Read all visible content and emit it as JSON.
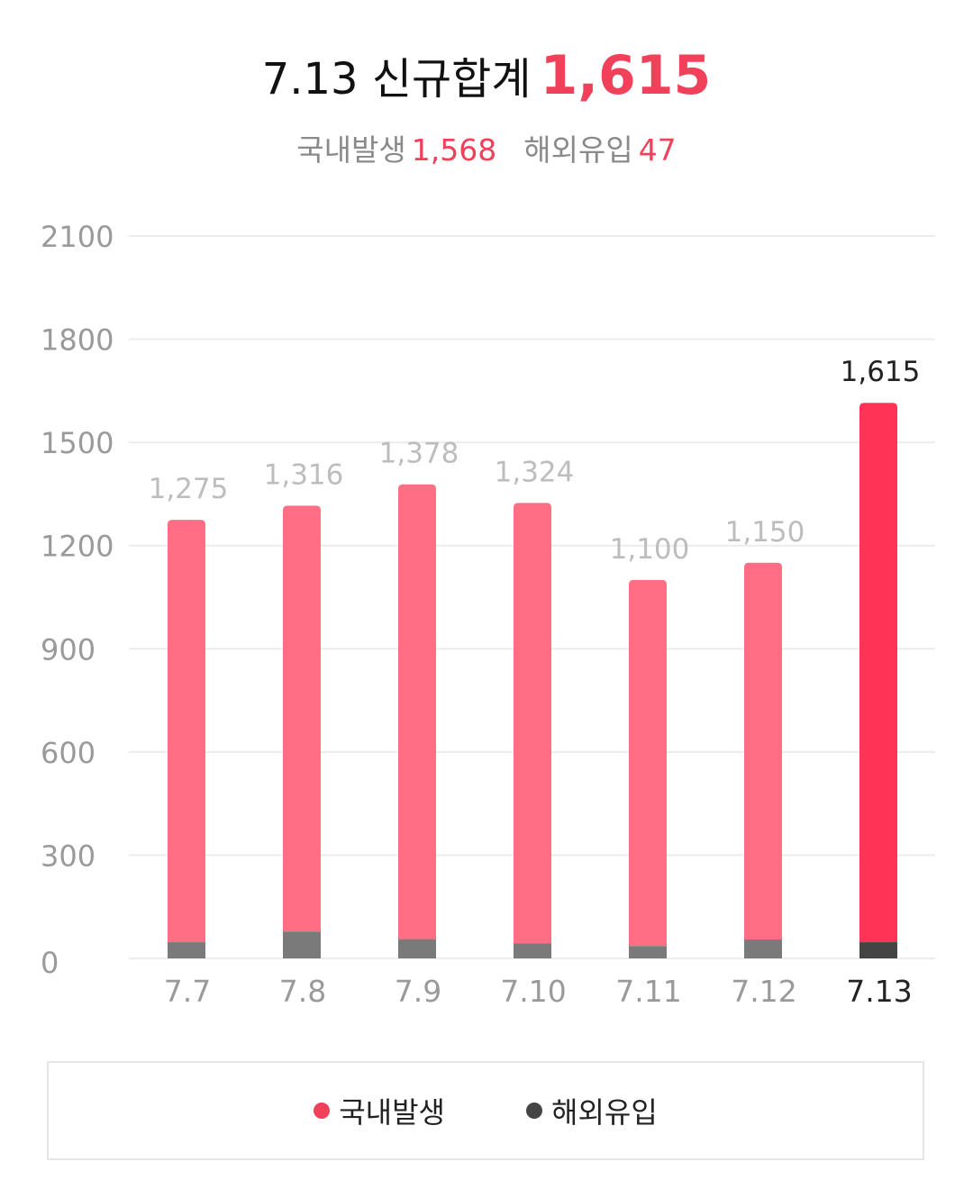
{
  "header": {
    "title": "7.13 신규합계",
    "total": "1,615",
    "domestic_label": "국내발생",
    "domestic_value": "1,568",
    "overseas_label": "해외유입",
    "overseas_value": "47"
  },
  "legend": {
    "domestic": "국내발생",
    "overseas": "해외유입"
  },
  "colors": {
    "domestic": "#ff6e84",
    "domestic_highlight": "#ff3355",
    "overseas": "#7a7a7a",
    "overseas_highlight": "#444444",
    "accent": "#f0405a",
    "grid": "#ececec",
    "muted_text": "#9a9a9a",
    "label_text": "#bdbdbd"
  },
  "chart_data": {
    "type": "bar",
    "stacked": true,
    "categories": [
      "7.7",
      "7.8",
      "7.9",
      "7.10",
      "7.11",
      "7.12",
      "7.13"
    ],
    "totals": [
      1275,
      1316,
      1378,
      1324,
      1100,
      1150,
      1615
    ],
    "total_labels": [
      "1,275",
      "1,316",
      "1,378",
      "1,324",
      "1,100",
      "1,150",
      "1,615"
    ],
    "series": [
      {
        "name": "해외유입",
        "values": [
          47,
          78,
          56,
          44,
          36,
          55,
          47
        ]
      },
      {
        "name": "국내발생",
        "values": [
          1228,
          1238,
          1322,
          1280,
          1064,
          1095,
          1568
        ]
      }
    ],
    "ylim": [
      0,
      2100
    ],
    "yticks": [
      0,
      300,
      600,
      900,
      1200,
      1500,
      1800,
      2100
    ],
    "highlight_index": 6,
    "grid": true,
    "legend_position": "bottom"
  }
}
